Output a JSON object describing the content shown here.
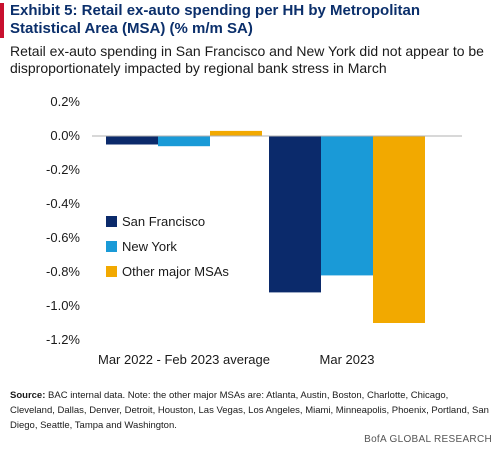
{
  "header": {
    "title": "Exhibit 5: Retail ex-auto spending per HH by Metropolitan Statistical Area (MSA) (% m/m SA)",
    "subtitle": "Retail ex-auto spending in San Francisco and New York did not appear to be disproportionately impacted by regional bank stress in March"
  },
  "footer": {
    "source_label": "Source:",
    "source_text": "BAC internal data. Note: the other major MSAs are: Atlanta, Austin, Boston, Charlotte, Chicago, Cleveland, Dallas, Denver, Detroit, Houston, Las Vegas, Los Angeles, Miami, Minneapolis, Phoenix, Portland, San Diego, Seattle, Tampa and Washington.",
    "brand": "BofA GLOBAL RESEARCH"
  },
  "colors": {
    "accent": "#c8102e",
    "title": "#0b2f6b",
    "axis": "#b0b0b0"
  },
  "chart_data": {
    "type": "bar",
    "categories": [
      "Mar 2022 - Feb 2023 average",
      "Mar 2023"
    ],
    "series": [
      {
        "name": "San Francisco",
        "color": "#0b2a6b",
        "values": [
          -0.05,
          -0.92
        ]
      },
      {
        "name": "New York",
        "color": "#1a9ad7",
        "values": [
          -0.06,
          -0.82
        ]
      },
      {
        "name": "Other major MSAs",
        "color": "#f2a900",
        "values": [
          0.03,
          -1.1
        ]
      }
    ],
    "ylim": [
      -1.2,
      0.2
    ],
    "yticks": [
      0.2,
      0.0,
      -0.2,
      -0.4,
      -0.6,
      -0.8,
      -1.0,
      -1.2
    ],
    "ytick_labels": [
      "0.2%",
      "0.0%",
      "-0.2%",
      "-0.4%",
      "-0.6%",
      "-0.8%",
      "-1.0%",
      "-1.2%"
    ],
    "grid": false,
    "legend_position": "bottom-left"
  }
}
